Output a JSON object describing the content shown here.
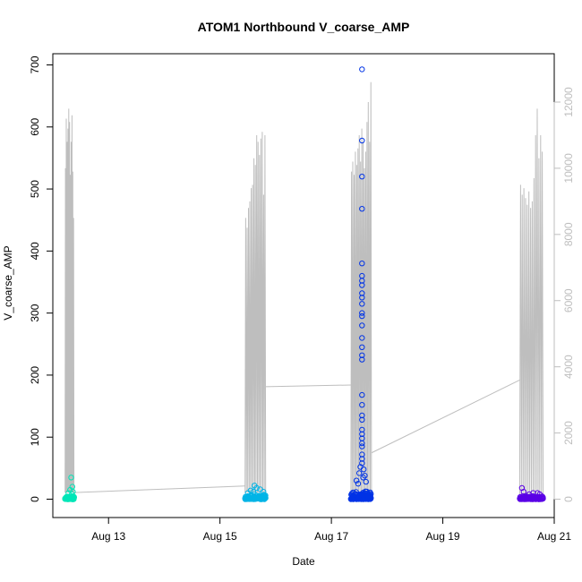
{
  "chart_data": {
    "type": "scatter",
    "title": "ATOM1 Northbound V_coarse_AMP",
    "xlabel": "Date",
    "ylabel": "V_coarse_AMP",
    "x_ticks": [
      "Aug 13",
      "Aug 15",
      "Aug 17",
      "Aug 19",
      "Aug 21"
    ],
    "x_tick_days": [
      13,
      15,
      17,
      19,
      21
    ],
    "xlim": [
      12.0,
      21.0
    ],
    "ylim": [
      0,
      700
    ],
    "y_ticks": [
      0,
      100,
      200,
      300,
      400,
      500,
      600,
      700
    ],
    "y2lim": [
      0,
      12800
    ],
    "y2_ticks": [
      0,
      2000,
      4000,
      6000,
      8000,
      10000,
      12000
    ],
    "y2_color": "#bebebe",
    "grid": false,
    "series": [
      {
        "color": "#00e6b8",
        "x_range": [
          12.22,
          12.38
        ],
        "baseline_max": 6,
        "outliers": [
          [
            12.33,
            35
          ],
          [
            12.35,
            20
          ],
          [
            12.31,
            15
          ],
          [
            12.36,
            12
          ],
          [
            12.28,
            10
          ],
          [
            12.34,
            8
          ]
        ]
      },
      {
        "color": "#00b4e6",
        "x_range": [
          15.45,
          15.82
        ],
        "baseline_max": 8,
        "outliers": [
          [
            15.62,
            22
          ],
          [
            15.66,
            18
          ],
          [
            15.55,
            14
          ],
          [
            15.72,
            16
          ],
          [
            15.78,
            12
          ],
          [
            15.5,
            10
          ],
          [
            15.6,
            12
          ]
        ]
      },
      {
        "color": "#0033e6",
        "x_range": [
          17.35,
          17.72
        ],
        "baseline_max": 15,
        "outliers": [
          [
            17.55,
            693
          ],
          [
            17.55,
            578
          ],
          [
            17.55,
            520
          ],
          [
            17.55,
            468
          ],
          [
            17.55,
            380
          ],
          [
            17.55,
            360
          ],
          [
            17.55,
            352
          ],
          [
            17.55,
            345
          ],
          [
            17.55,
            332
          ],
          [
            17.55,
            325
          ],
          [
            17.55,
            315
          ],
          [
            17.55,
            300
          ],
          [
            17.55,
            295
          ],
          [
            17.55,
            280
          ],
          [
            17.55,
            260
          ],
          [
            17.55,
            245
          ],
          [
            17.55,
            232
          ],
          [
            17.55,
            225
          ],
          [
            17.55,
            168
          ],
          [
            17.55,
            152
          ],
          [
            17.55,
            135
          ],
          [
            17.55,
            128
          ],
          [
            17.55,
            112
          ],
          [
            17.55,
            105
          ],
          [
            17.55,
            98
          ],
          [
            17.55,
            90
          ],
          [
            17.55,
            85
          ],
          [
            17.55,
            72
          ],
          [
            17.55,
            65
          ],
          [
            17.55,
            58
          ],
          [
            17.52,
            52
          ],
          [
            17.58,
            48
          ],
          [
            17.5,
            42
          ],
          [
            17.6,
            38
          ],
          [
            17.45,
            30
          ],
          [
            17.62,
            28
          ],
          [
            17.48,
            25
          ],
          [
            17.57,
            35
          ]
        ]
      },
      {
        "color": "#5a00e6",
        "x_range": [
          20.38,
          20.8
        ],
        "baseline_max": 6,
        "outliers": [
          [
            20.42,
            18
          ],
          [
            20.45,
            12
          ],
          [
            20.62,
            10
          ],
          [
            20.7,
            10
          ],
          [
            20.55,
            8
          ],
          [
            20.74,
            8
          ]
        ]
      }
    ],
    "gray_line": {
      "color": "#bebebe",
      "axis": "right",
      "segments": [
        {
          "x_range": [
            12.22,
            12.38
          ],
          "peaks": [
            10000,
            11500,
            10800,
            11200,
            11800,
            11400,
            9800,
            10800,
            11600,
            9900,
            8500
          ],
          "trough": 200
        },
        {
          "x_range": [
            15.45,
            15.82
          ],
          "peaks": [
            8500,
            8200,
            8800,
            9000,
            9400,
            9500,
            10300,
            10100,
            11000,
            10800,
            10400,
            10900,
            11100,
            9200,
            11000
          ],
          "trough": 200
        },
        {
          "x_range": [
            17.35,
            17.72
          ],
          "peaks": [
            9900,
            10200,
            9800,
            10500,
            10100,
            10600,
            11000,
            10200,
            11200,
            10800,
            10000,
            10500,
            11400,
            12000,
            10800,
            12600
          ],
          "trough": 100
        },
        {
          "x_range": [
            20.38,
            20.8
          ],
          "peaks": [
            9500,
            9200,
            9400,
            9100,
            8900,
            9300,
            8800,
            9000,
            9700,
            11000,
            11800,
            10300,
            11000,
            10500
          ],
          "trough": 100
        }
      ],
      "connectors": [
        [
          [
            12.38,
            200
          ],
          [
            15.45,
            400
          ]
        ],
        [
          [
            15.82,
            3400
          ],
          [
            17.35,
            3450
          ]
        ],
        [
          [
            17.72,
            1400
          ],
          [
            20.38,
            3600
          ]
        ]
      ]
    }
  }
}
